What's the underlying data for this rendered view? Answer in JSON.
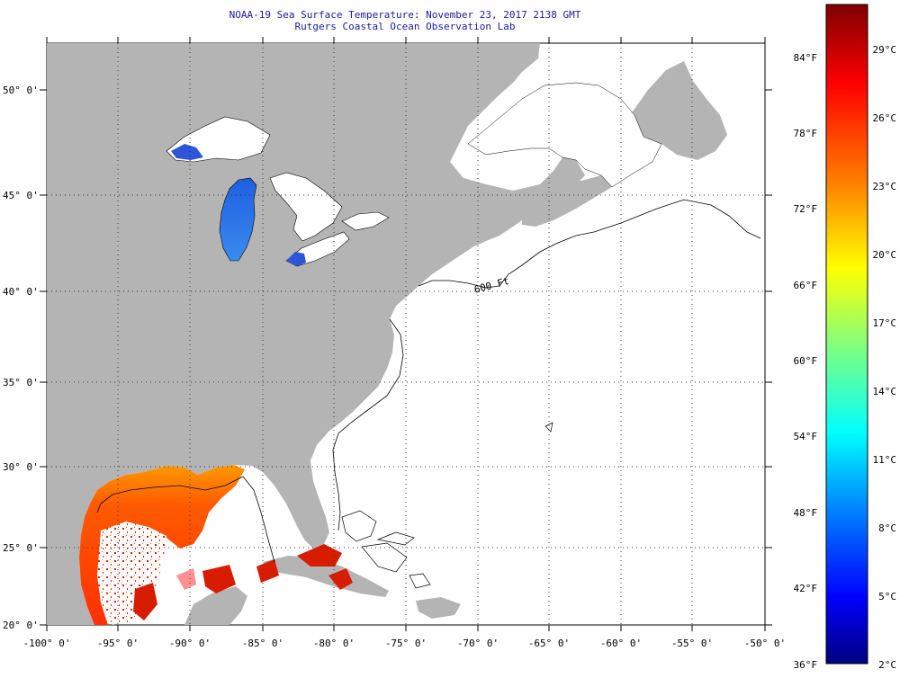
{
  "header": {
    "title": "NOAA-19 Sea Surface Temperature:  November 23, 2017 2138 GMT",
    "subtitle": "Rutgers Coastal Ocean Observation Lab"
  },
  "map": {
    "lat_labels": [
      "50° 0'",
      "45° 0'",
      "40° 0'",
      "35° 0'",
      "30° 0'",
      "25° 0'",
      "20° 0'"
    ],
    "lon_labels": [
      "-100° 0'",
      "-95° 0'",
      "-90° 0'",
      "-85° 0'",
      "-80° 0'",
      "-75° 0'",
      "-70° 0'",
      "-65° 0'",
      "-60° 0'",
      "-55° 0'",
      "-50° 0'"
    ],
    "isobath_label": "600 Ft",
    "colors": {
      "land": "#b4b4b4",
      "ocean_nodata": "#ffffff",
      "grid": "#333333"
    }
  },
  "colorbar": {
    "fahrenheit_labels": [
      "84°F",
      "78°F",
      "72°F",
      "66°F",
      "60°F",
      "54°F",
      "48°F",
      "42°F",
      "36°F"
    ],
    "celsius_labels": [
      "29°C",
      "26°C",
      "23°C",
      "20°C",
      "17°C",
      "14°C",
      "11°C",
      "8°C",
      "5°C",
      "2°C"
    ],
    "gradient_stops": [
      "#7f0000",
      "#ff0000",
      "#ff7f00",
      "#ffff00",
      "#7fff7f",
      "#00ffff",
      "#007fff",
      "#0000ff",
      "#00007f"
    ]
  }
}
